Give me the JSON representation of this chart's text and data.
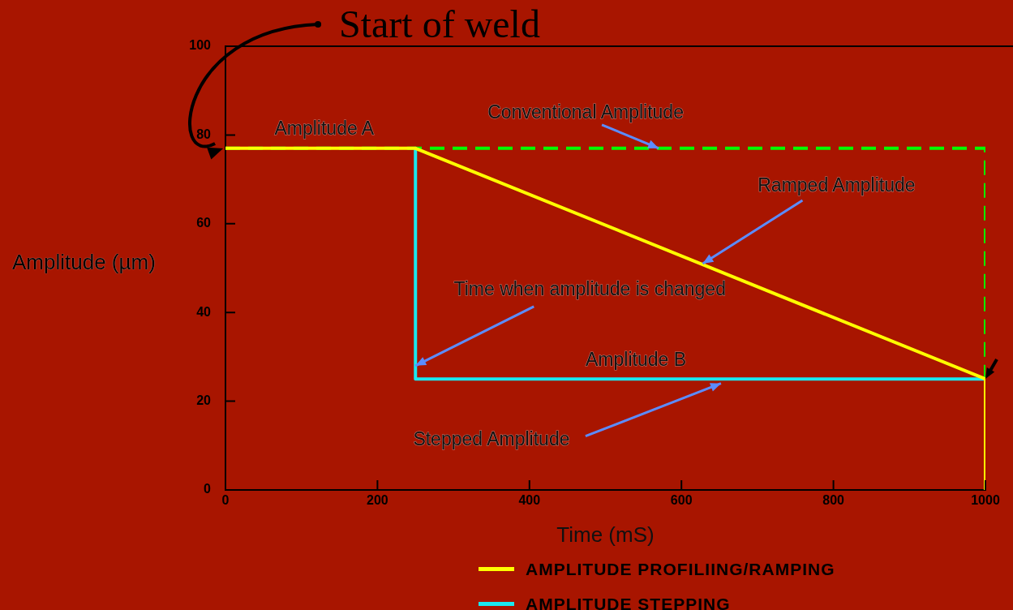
{
  "chart_data": {
    "type": "line",
    "xlabel": "Time (mS)",
    "ylabel": "Amplitude (µm)",
    "xlim": [
      0,
      1000
    ],
    "xticks": [
      0,
      200,
      400,
      600,
      800,
      1000
    ],
    "ylim": [
      0,
      100
    ],
    "yticks": [
      0,
      20,
      40,
      60,
      80,
      100
    ],
    "legend": "bottom",
    "marker": "none",
    "series": [
      {
        "name": "AMPLITUDE PROFILIING/RAMPING",
        "color": "#ffff00",
        "x": [
          0,
          250,
          1000,
          1000
        ],
        "values": [
          77,
          77,
          25,
          0
        ]
      },
      {
        "name": "AMPLITUDE STEPPING",
        "color": "#19e8f0",
        "x": [
          250,
          250,
          1000,
          1000
        ],
        "values": [
          77,
          25,
          25,
          0
        ]
      },
      {
        "color": "#00ff00",
        "line_style": "dashed",
        "x": [
          0,
          1000,
          1000
        ],
        "values": [
          77,
          77,
          25
        ]
      }
    ],
    "annotations": [
      "Start of weld",
      {
        "text": "Amplitude A",
        "x": 130,
        "y": 77
      },
      {
        "text": "Conventional Amplitude",
        "x": 570,
        "y": 77
      },
      {
        "text": "Ramped Amplitude",
        "x": 628,
        "y": 51
      },
      {
        "text": "Time when amplitude is changed",
        "x": 250,
        "y": 28
      },
      {
        "text": "Amplitude B",
        "x": 540,
        "y": 25
      },
      {
        "text": "Stepped Amplitude",
        "x": 652,
        "y": 24
      }
    ]
  }
}
